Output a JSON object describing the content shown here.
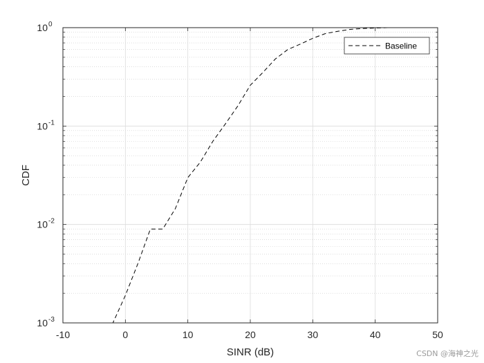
{
  "chart_data": {
    "type": "line",
    "xlabel": "SINR (dB)",
    "ylabel": "CDF",
    "xlim": [
      -10,
      50
    ],
    "ylim": [
      0.001,
      1
    ],
    "yscale": "log",
    "grid": true,
    "minor_grid": true,
    "legend_position": "top-right",
    "x_ticks": [
      -10,
      0,
      10,
      20,
      30,
      40,
      50
    ],
    "y_ticks": [
      {
        "value": 0.001,
        "base": "10",
        "exp": "-3"
      },
      {
        "value": 0.01,
        "base": "10",
        "exp": "-2"
      },
      {
        "value": 0.1,
        "base": "10",
        "exp": "-1"
      },
      {
        "value": 1,
        "base": "10",
        "exp": "0"
      }
    ],
    "series": [
      {
        "name": "Baseline",
        "style": "dashed",
        "color": "#000000",
        "x": [
          -10,
          -2,
          0,
          2,
          4,
          6,
          8,
          10,
          12,
          14,
          16,
          18,
          20,
          22,
          24,
          26,
          28,
          30,
          32,
          34,
          36,
          38,
          40,
          42,
          44
        ],
        "y": [
          0.001,
          0.001,
          0.0019,
          0.004,
          0.009,
          0.009,
          0.0145,
          0.03,
          0.043,
          0.07,
          0.105,
          0.16,
          0.26,
          0.35,
          0.48,
          0.6,
          0.68,
          0.78,
          0.87,
          0.92,
          0.96,
          0.98,
          0.99,
          1.0,
          1.0
        ]
      }
    ]
  },
  "watermark": "CSDN @海神之光"
}
